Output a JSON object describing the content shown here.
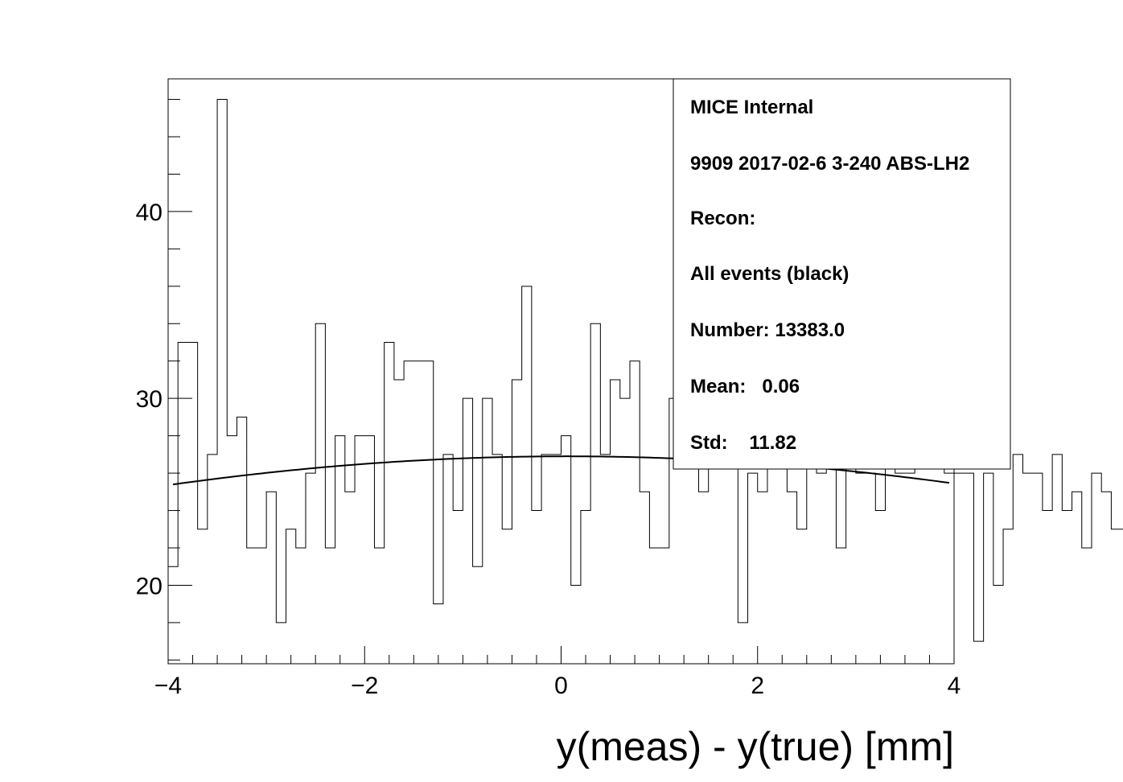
{
  "chart_data": {
    "type": "histogram",
    "xlabel": "y(meas) - y(true) [mm]",
    "ylabel": "",
    "xlim": [
      -4,
      4
    ],
    "ylim": [
      15.8,
      47.1
    ],
    "x_ticks": [
      -4,
      -2,
      0,
      2,
      4
    ],
    "x_tick_labels": [
      "−4",
      "−2",
      "0",
      "2",
      "4"
    ],
    "y_ticks": [
      20,
      30,
      40
    ],
    "y_tick_labels": [
      "20",
      "30",
      "40"
    ],
    "bin_edges_start": -4,
    "bin_width": 0.1,
    "counts": [
      21,
      33,
      33,
      23,
      27,
      46,
      28,
      29,
      22,
      22,
      25,
      18,
      23,
      22,
      26,
      34,
      22,
      28,
      25,
      28,
      28,
      22,
      33,
      31,
      32,
      32,
      32,
      19,
      27,
      24,
      30,
      21,
      30,
      27,
      23,
      31,
      36,
      24,
      27,
      27,
      28,
      20,
      24,
      34,
      27,
      31,
      30,
      32,
      25,
      22,
      22,
      30,
      28,
      32,
      25,
      30,
      28,
      29,
      18,
      26,
      25,
      30,
      30,
      25,
      23,
      27,
      26,
      27,
      22,
      27,
      26,
      26,
      24,
      27,
      26,
      26,
      27,
      27,
      27,
      26,
      26,
      26,
      17,
      26,
      20,
      23,
      27,
      26,
      26,
      24,
      27,
      24,
      25,
      22,
      26,
      25,
      23,
      23
    ],
    "fit": {
      "type": "gaussian",
      "amplitude": 26.9,
      "mean": 0.06,
      "sigma": 11.82,
      "x_range": [
        -3.95,
        3.95
      ]
    },
    "legend_placement": "top-right",
    "grid": false
  },
  "stats_box": {
    "lines": [
      "MICE Internal",
      "9909 2017-02-6 3-240 ABS-LH2",
      "Recon:",
      "All events (black)",
      "Number: 13383.0",
      "Mean:   0.06",
      "Std:    11.82"
    ]
  }
}
